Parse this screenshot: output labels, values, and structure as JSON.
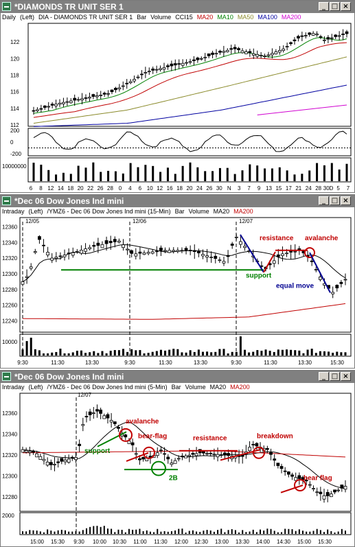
{
  "colors": {
    "titlebar": "#808080",
    "ma_red": "#c00000",
    "ma_green": "#008000",
    "ma_olive": "#8a8a2a",
    "ma_blue": "#0000a0",
    "ma_magenta": "#d000d0",
    "annot_red": "#c00000",
    "annot_green": "#008000",
    "annot_blue": "#000090"
  },
  "windows": [
    {
      "title": "*DIAMONDS TR UNIT SER 1",
      "header": [
        {
          "t": "Daily",
          "c": "#000"
        },
        {
          "t": "(Left)",
          "c": "#000"
        },
        {
          "t": "DIA - DIAMONDS TR UNIT SER 1",
          "c": "#000"
        },
        {
          "t": "Bar",
          "c": "#000"
        },
        {
          "t": "Volume",
          "c": "#000"
        },
        {
          "t": "CCI15",
          "c": "#000"
        },
        {
          "t": "MA20",
          "c": "#c00000"
        },
        {
          "t": "MA10",
          "c": "#008000"
        },
        {
          "t": "MA50",
          "c": "#8a8a2a"
        },
        {
          "t": "MA100",
          "c": "#0000a0"
        },
        {
          "t": "MA200",
          "c": "#d000d0"
        }
      ],
      "y_ticks": [
        "122",
        "120",
        "118",
        "116",
        "114",
        "112"
      ],
      "cci_ticks": [
        "200",
        "0",
        "-200"
      ],
      "volume_tick": "10000000",
      "x_ticks": [
        "6",
        "8",
        "12",
        "14",
        "18",
        "20",
        "22",
        "26",
        "28",
        "0",
        "4",
        "6",
        "10",
        "12",
        "16",
        "18",
        "20",
        "24",
        "26",
        "30",
        "N",
        "3",
        "7",
        "9",
        "13",
        "15",
        "17",
        "21",
        "24",
        "28",
        "30D",
        "5",
        "7"
      ]
    },
    {
      "title": "*Dec 06  Dow Jones Ind mini",
      "header": [
        {
          "t": "Intraday",
          "c": "#000"
        },
        {
          "t": "(Left)",
          "c": "#000"
        },
        {
          "t": "/YMZ6 - Dec 06  Dow Jones Ind mini  (15-Min)",
          "c": "#000"
        },
        {
          "t": "Bar",
          "c": "#000"
        },
        {
          "t": "Volume",
          "c": "#000"
        },
        {
          "t": "MA20",
          "c": "#000"
        },
        {
          "t": "MA200",
          "c": "#c00000"
        }
      ],
      "y_ticks": [
        "12360",
        "12340",
        "12320",
        "12300",
        "12280",
        "12260",
        "12240"
      ],
      "volume_tick": "10000",
      "date_labels": [
        "12/05",
        "12/06",
        "12/07"
      ],
      "x_ticks": [
        "9:30",
        "11:30",
        "13:30",
        "9:30",
        "11:30",
        "13:30",
        "9:30",
        "11:30",
        "13:30",
        "15:30"
      ],
      "annotations": {
        "resistance": "resistance",
        "avalanche": "avalanche",
        "support": "support",
        "equal_move": "equal move"
      }
    },
    {
      "title": "*Dec 06  Dow Jones Ind mini",
      "header": [
        {
          "t": "Intraday",
          "c": "#000"
        },
        {
          "t": "(Left)",
          "c": "#000"
        },
        {
          "t": "/YMZ6 - Dec 06  Dow Jones Ind mini  (5-Min)",
          "c": "#000"
        },
        {
          "t": "Bar",
          "c": "#000"
        },
        {
          "t": "Volume",
          "c": "#000"
        },
        {
          "t": "MA20",
          "c": "#000"
        },
        {
          "t": "MA200",
          "c": "#c00000"
        }
      ],
      "y_ticks": [
        "12360",
        "12340",
        "12320",
        "12300",
        "12280"
      ],
      "volume_tick": "2000",
      "date_label": "12/07",
      "x_ticks": [
        "15:00",
        "15:30",
        "9:30",
        "10:00",
        "10:30",
        "11:00",
        "11:30",
        "12:00",
        "12:30",
        "13:00",
        "13:30",
        "14:00",
        "14:30",
        "15:00",
        "15:30"
      ],
      "annotations": {
        "avalanche": "avalanche",
        "bear_flag_1": "bear-flag",
        "resistance": "resistance",
        "breakdown": "breakdown",
        "support": "support",
        "two_b": "2B",
        "bear_flag_2": "bear flag"
      }
    }
  ]
}
